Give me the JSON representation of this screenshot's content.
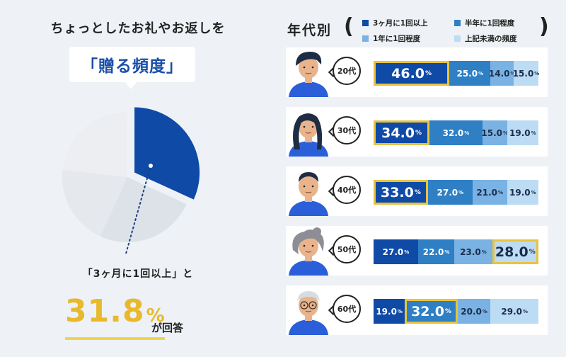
{
  "headline": "ちょっとしたお礼やお返しを",
  "bubble_text": "「贈る頻度」",
  "caption": "「3ヶ月に1回以上」と",
  "highlight_value": "31.8",
  "highlight_unit": "%",
  "answer_text": "が回答",
  "right_title": "年代別",
  "paren_open": "(",
  "paren_close": ")",
  "colors": {
    "s1": "#0f4aa6",
    "s2": "#2f7fc4",
    "s3": "#79b2e3",
    "s4": "#bcdcf4",
    "highlight": "#e8c33e"
  },
  "chart_data": [
    {
      "type": "pie",
      "slices": [
        {
          "name": "3ヶ月に1回以上",
          "value": 31.8
        },
        {
          "name": "半年に1回程度",
          "value": 25.0
        },
        {
          "name": "1年に1回程度",
          "value": 20.0
        },
        {
          "name": "上記未満の頻度",
          "value": 23.2
        }
      ],
      "highlight": "3ヶ月に1回以上"
    },
    {
      "type": "bar",
      "orientation": "horizontal",
      "stacked": true,
      "categories": [
        "20代",
        "30代",
        "40代",
        "50代",
        "60代"
      ],
      "series": [
        {
          "name": "3ヶ月に1回以上",
          "values": [
            46.0,
            34.0,
            33.0,
            27.0,
            19.0
          ]
        },
        {
          "name": "半年に1回程度",
          "values": [
            25.0,
            32.0,
            27.0,
            22.0,
            32.0
          ]
        },
        {
          "name": "1年に1回程度",
          "values": [
            14.0,
            15.0,
            21.0,
            23.0,
            20.0
          ]
        },
        {
          "name": "上記未満の頻度",
          "values": [
            15.0,
            19.0,
            19.0,
            28.0,
            29.0
          ]
        }
      ],
      "highlight_series_index": [
        0,
        0,
        0,
        3,
        1
      ],
      "unit": "%"
    }
  ]
}
